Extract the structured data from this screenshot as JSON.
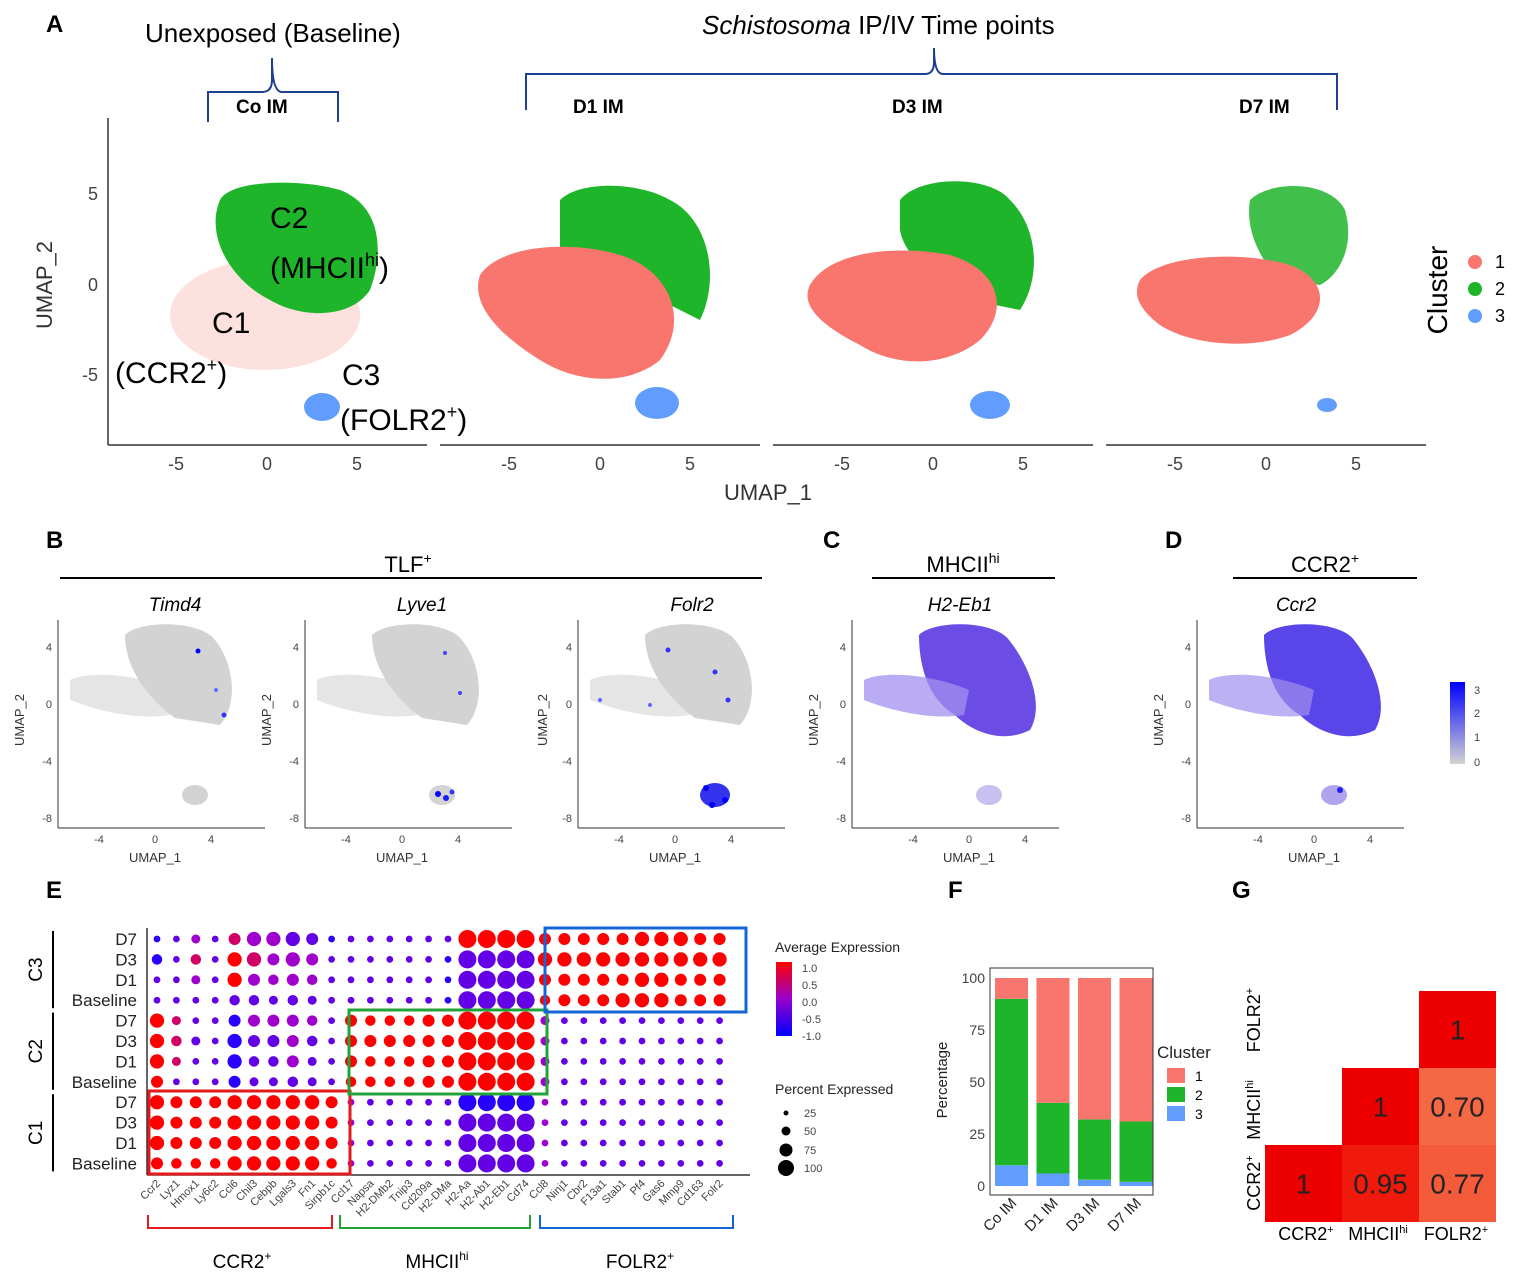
{
  "panel_labels": {
    "A": "A",
    "B": "B",
    "C": "C",
    "D": "D",
    "E": "E",
    "F": "F",
    "G": "G"
  },
  "panel_a": {
    "baseline_header": "Unexposed (Baseline)",
    "timepoint_header_italic": "Schistosoma",
    "timepoint_header_rest": " IP/IV  Time points",
    "facets": [
      "Co IM",
      "D1 IM",
      "D3 IM",
      "D7 IM"
    ],
    "xlabel": "UMAP_1",
    "ylabel": "UMAP_2",
    "xticks": [
      "-5",
      "0",
      "5"
    ],
    "yticks": [
      "5",
      "0",
      "-5"
    ],
    "legend_title": "Cluster",
    "legend_items": [
      {
        "label": "1",
        "color": "#f8766d"
      },
      {
        "label": "2",
        "color": "#1fb52b"
      },
      {
        "label": "3",
        "color": "#619cff"
      }
    ],
    "annotations": {
      "c2_line1": "C2",
      "c2_line2_pre": "(MHCII",
      "c2_line2_sup": "hi",
      "c2_line2_post": ")",
      "c1_line1": "C1",
      "c1_line2_pre": "(CCR2",
      "c1_line2_sup": "+",
      "c1_line2_post": ")",
      "c3_line1": "C3",
      "c3_line2_pre": "(FOLR2",
      "c3_line2_sup": "+",
      "c3_line2_post": ")"
    }
  },
  "feature_plots": {
    "tlf_header_pre": "TLF",
    "tlf_header_sup": "+",
    "mhc_header_pre": "MHCII",
    "mhc_header_sup": "hi",
    "ccr2_header_pre": "CCR2",
    "ccr2_header_sup": "+",
    "genes": [
      "Timd4",
      "Lyve1",
      "Folr2",
      "H2-Eb1",
      "Ccr2"
    ],
    "xlabel": "UMAP_1",
    "ylabel": "UMAP_2",
    "xticks": [
      "-4",
      "0",
      "4"
    ],
    "yticks": [
      "4",
      "0",
      "-4",
      "-8"
    ],
    "colorbar_ticks": [
      "3",
      "2",
      "1",
      "0"
    ],
    "low_color": "#d3d3d3",
    "high_color": "#0000ff"
  },
  "chart_data": [
    {
      "type": "dot",
      "panel": "E",
      "genes": [
        "Ccr2",
        "Lyz1",
        "Hmox1",
        "Ly6c2",
        "Ccl6",
        "Chil3",
        "Cebpb",
        "Lgals3",
        "Fn1",
        "Sirpb1c",
        "Ccl17",
        "Napsa",
        "H2-DMb2",
        "Tnip3",
        "Cd209a",
        "H2-DMa",
        "H2-Aa",
        "H2-Ab1",
        "H2-Eb1",
        "Cd74",
        "Ccl8",
        "Ninj1",
        "Cbr2",
        "F13a1",
        "Stab1",
        "Pf4",
        "Gas6",
        "Mmp9",
        "Cd163",
        "Folr2"
      ],
      "row_labels": [
        "D7",
        "D3",
        "D1",
        "Baseline",
        "D7",
        "D3",
        "D1",
        "Baseline",
        "D7",
        "D3",
        "D1",
        "Baseline"
      ],
      "row_groups": [
        "C3",
        "C2",
        "C1"
      ],
      "gene_groups": [
        {
          "label_pre": "CCR2",
          "label_sup": "+",
          "color": "#e31a1c"
        },
        {
          "label_pre": "MHCII",
          "label_sup": "hi",
          "color": "#22a33a"
        },
        {
          "label_pre": "FOLR2",
          "label_sup": "+",
          "color": "#1565d8"
        }
      ],
      "color_legend_title": "Average Expression",
      "color_legend_ticks": [
        "1.0",
        "0.5",
        "0.0",
        "-0.5",
        "-1.0"
      ],
      "size_legend_title": "Percent Expressed",
      "size_legend_ticks": [
        "25",
        "50",
        "75",
        "100"
      ],
      "avg_expression": [
        [
          -1,
          -0.5,
          0,
          -0.5,
          0.5,
          0,
          0,
          -0.5,
          -0.5,
          -1,
          -0.5,
          -0.5,
          -0.5,
          -0.5,
          -0.5,
          -0.5,
          1,
          1,
          1,
          1,
          1,
          1,
          1,
          1,
          1,
          1,
          1,
          1,
          1,
          1
        ],
        [
          -1,
          -0.5,
          0.5,
          -0.5,
          1,
          0.5,
          0,
          0,
          0,
          -0.5,
          -0.5,
          -0.5,
          -0.5,
          -0.5,
          -0.5,
          -1,
          -0.5,
          -0.5,
          -0.5,
          -0.5,
          1,
          1,
          1,
          1,
          1,
          1,
          1,
          1,
          1,
          1
        ],
        [
          -0.5,
          -0.5,
          0,
          -0.5,
          1,
          0,
          0,
          0,
          0,
          -0.5,
          -0.5,
          -0.5,
          -0.5,
          -0.5,
          -0.5,
          -1,
          -0.5,
          -0.5,
          -0.5,
          -0.5,
          1,
          1,
          1,
          1,
          1,
          1,
          1,
          1,
          1,
          1
        ],
        [
          -0.5,
          -0.5,
          -0.5,
          -0.5,
          -0.5,
          -0.5,
          -0.5,
          -0.5,
          -0.5,
          -0.5,
          -0.5,
          -0.5,
          -0.5,
          -0.5,
          -0.5,
          -1,
          -0.5,
          -0.5,
          -0.5,
          -0.5,
          1,
          1,
          1,
          1,
          1,
          1,
          1,
          1,
          1,
          1
        ],
        [
          1,
          0.5,
          -0.5,
          -0.5,
          -1,
          0,
          0,
          0,
          0,
          -0.5,
          1,
          1,
          1,
          1,
          1,
          1,
          1,
          1,
          1,
          1,
          0,
          -0.5,
          -0.5,
          -0.5,
          -0.5,
          -0.5,
          -0.5,
          -0.5,
          -0.5,
          -0.5
        ],
        [
          1,
          0.5,
          -0.5,
          -0.5,
          -1,
          -0.5,
          -0.5,
          0,
          -0.5,
          -0.5,
          1,
          1,
          1,
          1,
          1,
          1,
          1,
          1,
          1,
          1,
          0,
          -0.5,
          -0.5,
          -0.5,
          -0.5,
          -0.5,
          -0.5,
          -0.5,
          -0.5,
          -0.5
        ],
        [
          1,
          0.5,
          -0.5,
          -0.5,
          -1,
          -0.5,
          -0.5,
          0,
          -0.5,
          -0.5,
          1,
          1,
          1,
          1,
          1,
          1,
          1,
          1,
          1,
          1,
          0,
          -0.5,
          -0.5,
          -0.5,
          -0.5,
          -0.5,
          -0.5,
          -0.5,
          -0.5,
          -0.5
        ],
        [
          1,
          -0.5,
          -0.5,
          -0.5,
          -1,
          -0.5,
          -0.5,
          -0.5,
          -0.5,
          -0.5,
          1,
          1,
          1,
          1,
          1,
          1,
          1,
          1,
          1,
          1,
          0,
          -0.5,
          -0.5,
          -0.5,
          -0.5,
          -0.5,
          -0.5,
          -0.5,
          -0.5,
          -0.5
        ],
        [
          1,
          1,
          1,
          1,
          1,
          1,
          1,
          1,
          1,
          1,
          0,
          -0.5,
          -0.5,
          -0.5,
          -0.5,
          -0.5,
          -1,
          -1,
          -1,
          -1,
          0,
          -0.5,
          -0.5,
          -0.5,
          -0.5,
          -0.5,
          -0.5,
          -0.5,
          -0.5,
          -0.5
        ],
        [
          1,
          1,
          1,
          1,
          1,
          1,
          1,
          1,
          1,
          1,
          0,
          -0.5,
          -0.5,
          -0.5,
          -0.5,
          -0.5,
          -0.5,
          -0.5,
          -0.5,
          -0.5,
          0,
          -0.5,
          -0.5,
          -0.5,
          -0.5,
          -0.5,
          -0.5,
          -0.5,
          -0.5,
          -0.5
        ],
        [
          1,
          1,
          1,
          1,
          1,
          1,
          1,
          1,
          1,
          1,
          0,
          -0.5,
          -0.5,
          -0.5,
          -0.5,
          -0.5,
          -0.5,
          -0.5,
          -0.5,
          -0.5,
          0,
          -0.5,
          -0.5,
          -0.5,
          -0.5,
          -0.5,
          -0.5,
          -0.5,
          -0.5,
          -0.5
        ],
        [
          1,
          1,
          1,
          1,
          1,
          1,
          1,
          1,
          1,
          1,
          0,
          -0.5,
          -0.5,
          -0.5,
          -0.5,
          -0.5,
          -0.5,
          -0.5,
          -0.5,
          -0.5,
          0,
          -0.5,
          -0.5,
          -0.5,
          -0.5,
          -0.5,
          -0.5,
          -0.5,
          -0.5,
          -0.5
        ]
      ],
      "pct_expressed": [
        [
          25,
          25,
          40,
          25,
          60,
          75,
          75,
          75,
          60,
          25,
          25,
          25,
          25,
          25,
          25,
          25,
          100,
          100,
          100,
          100,
          60,
          60,
          60,
          60,
          60,
          75,
          75,
          75,
          60,
          60
        ],
        [
          50,
          25,
          50,
          25,
          75,
          75,
          60,
          75,
          60,
          25,
          25,
          25,
          25,
          25,
          25,
          25,
          100,
          100,
          100,
          100,
          75,
          75,
          75,
          75,
          75,
          75,
          75,
          75,
          75,
          75
        ],
        [
          25,
          25,
          40,
          25,
          75,
          60,
          50,
          60,
          50,
          25,
          25,
          25,
          25,
          25,
          25,
          25,
          100,
          100,
          100,
          100,
          60,
          60,
          60,
          60,
          60,
          75,
          75,
          60,
          60,
          60
        ],
        [
          25,
          25,
          25,
          25,
          50,
          50,
          40,
          50,
          40,
          25,
          25,
          25,
          25,
          25,
          25,
          25,
          100,
          100,
          100,
          100,
          50,
          60,
          60,
          60,
          75,
          75,
          75,
          60,
          60,
          60
        ],
        [
          75,
          40,
          25,
          25,
          60,
          60,
          60,
          60,
          50,
          25,
          60,
          50,
          50,
          50,
          60,
          60,
          100,
          100,
          100,
          100,
          40,
          25,
          25,
          25,
          25,
          25,
          25,
          25,
          25,
          25
        ],
        [
          75,
          50,
          40,
          25,
          75,
          60,
          60,
          60,
          50,
          25,
          60,
          60,
          60,
          60,
          60,
          60,
          100,
          100,
          100,
          100,
          40,
          25,
          25,
          25,
          25,
          25,
          25,
          25,
          25,
          25
        ],
        [
          75,
          40,
          25,
          25,
          75,
          50,
          50,
          60,
          40,
          25,
          60,
          50,
          50,
          50,
          60,
          60,
          100,
          100,
          100,
          100,
          40,
          25,
          25,
          25,
          25,
          25,
          25,
          25,
          25,
          25
        ],
        [
          60,
          25,
          25,
          25,
          60,
          40,
          40,
          50,
          40,
          25,
          50,
          50,
          50,
          50,
          60,
          60,
          100,
          100,
          100,
          100,
          40,
          25,
          25,
          25,
          25,
          25,
          25,
          25,
          25,
          25
        ],
        [
          75,
          60,
          60,
          60,
          75,
          75,
          75,
          75,
          75,
          60,
          25,
          25,
          25,
          25,
          25,
          25,
          100,
          100,
          100,
          100,
          25,
          25,
          25,
          25,
          25,
          25,
          25,
          25,
          25,
          25
        ],
        [
          75,
          60,
          60,
          60,
          75,
          75,
          75,
          75,
          75,
          60,
          25,
          25,
          25,
          25,
          25,
          25,
          100,
          100,
          100,
          100,
          25,
          25,
          25,
          25,
          25,
          25,
          25,
          25,
          25,
          25
        ],
        [
          75,
          60,
          60,
          60,
          75,
          75,
          75,
          75,
          75,
          60,
          25,
          25,
          25,
          25,
          25,
          25,
          100,
          100,
          100,
          100,
          25,
          25,
          25,
          25,
          25,
          25,
          25,
          25,
          25,
          25
        ],
        [
          60,
          50,
          50,
          50,
          75,
          75,
          75,
          75,
          75,
          50,
          25,
          25,
          25,
          25,
          25,
          25,
          100,
          100,
          100,
          100,
          25,
          25,
          25,
          25,
          25,
          25,
          25,
          25,
          25,
          25
        ]
      ]
    },
    {
      "type": "stacked-bar",
      "panel": "F",
      "categories": [
        "Co IM",
        "D1 IM",
        "D3 IM",
        "D7 IM"
      ],
      "series": [
        {
          "name": "3",
          "color": "#619cff",
          "values": [
            10,
            6,
            3,
            2
          ]
        },
        {
          "name": "2",
          "color": "#1fb52b",
          "values": [
            80,
            34,
            29,
            29
          ]
        },
        {
          "name": "1",
          "color": "#f8766d",
          "values": [
            10,
            60,
            68,
            69
          ]
        }
      ],
      "ylabel": "Percentage",
      "yticks": [
        "100",
        "75",
        "50",
        "25",
        "0"
      ],
      "ylim": [
        0,
        100
      ],
      "legend_title": "Cluster",
      "legend_labels": [
        "1",
        "2",
        "3"
      ]
    },
    {
      "type": "heatmap",
      "panel": "G",
      "labels": [
        "CCR2+",
        "MHCIIhi",
        "FOLR2+"
      ],
      "axis_labels": [
        {
          "pre": "CCR2",
          "sup": "+"
        },
        {
          "pre": "MHCII",
          "sup": "hi"
        },
        {
          "pre": "FOLR2",
          "sup": "+"
        }
      ],
      "cells": [
        {
          "row": "CCR2+",
          "col": "CCR2+",
          "value": "1",
          "color": "#ee0000"
        },
        {
          "row": "CCR2+",
          "col": "MHCIIhi",
          "value": "0.95",
          "color": "#ef1a0c"
        },
        {
          "row": "CCR2+",
          "col": "FOLR2+",
          "value": "0.77",
          "color": "#f45b3a"
        },
        {
          "row": "MHCIIhi",
          "col": "MHCIIhi",
          "value": "1",
          "color": "#ee0000"
        },
        {
          "row": "MHCIIhi",
          "col": "FOLR2+",
          "value": "0.70",
          "color": "#f56844"
        },
        {
          "row": "FOLR2+",
          "col": "FOLR2+",
          "value": "1",
          "color": "#ee0000"
        }
      ]
    }
  ]
}
